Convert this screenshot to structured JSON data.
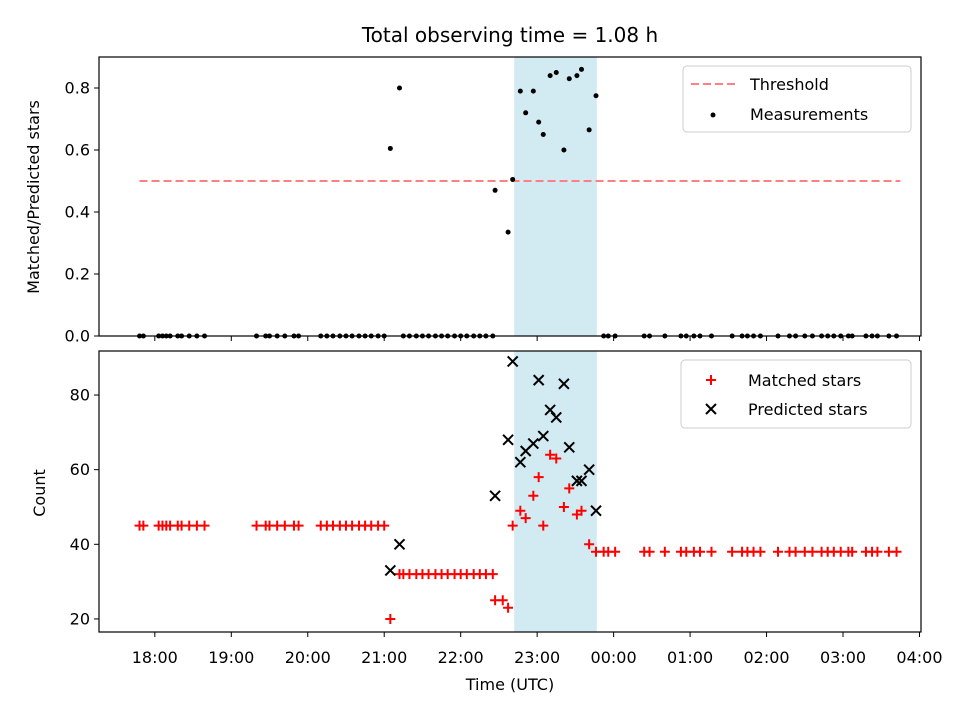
{
  "chart_data": {
    "title": "Total observing time = 1.08 h",
    "xlabel": "Time (UTC)",
    "x_tick_labels": [
      "18:00",
      "19:00",
      "20:00",
      "21:00",
      "22:00",
      "23:00",
      "00:00",
      "01:00",
      "02:00",
      "03:00",
      "04:00"
    ],
    "x_tick_hours": [
      18,
      19,
      20,
      21,
      22,
      23,
      24,
      25,
      26,
      27,
      28
    ],
    "xlim_hours": [
      17.27,
      28.02
    ],
    "highlight_span_hours": [
      22.7,
      23.78
    ],
    "colors": {
      "highlight": "#add8e6",
      "threshold": "#ff8080",
      "measurements": "#000000",
      "matched": "#ff0000",
      "predicted": "#000000"
    },
    "panels": [
      {
        "type": "scatter",
        "ylabel": "Matched/Predicted stars",
        "ylim": [
          0,
          0.9
        ],
        "y_ticks": [
          0.0,
          0.2,
          0.4,
          0.6,
          0.8
        ],
        "y_tick_labels": [
          "0.0",
          "0.2",
          "0.4",
          "0.6",
          "0.8"
        ],
        "legend_position": "upper right",
        "legend": [
          "Threshold",
          "Measurements"
        ],
        "threshold": {
          "y": 0.5,
          "x_range": [
            17.8,
            27.75
          ]
        },
        "series": [
          {
            "name": "Measurements",
            "points": [
              [
                17.8,
                0
              ],
              [
                17.85,
                0
              ],
              [
                18.05,
                0
              ],
              [
                18.1,
                0
              ],
              [
                18.15,
                0
              ],
              [
                18.2,
                0
              ],
              [
                18.3,
                0
              ],
              [
                18.35,
                0
              ],
              [
                18.45,
                0
              ],
              [
                18.55,
                0
              ],
              [
                18.65,
                0
              ],
              [
                19.33,
                0
              ],
              [
                19.45,
                0
              ],
              [
                19.5,
                0
              ],
              [
                19.6,
                0
              ],
              [
                19.7,
                0
              ],
              [
                19.82,
                0
              ],
              [
                19.88,
                0
              ],
              [
                20.17,
                0
              ],
              [
                20.25,
                0
              ],
              [
                20.33,
                0
              ],
              [
                20.42,
                0
              ],
              [
                20.5,
                0
              ],
              [
                20.58,
                0
              ],
              [
                20.67,
                0
              ],
              [
                20.75,
                0
              ],
              [
                20.83,
                0
              ],
              [
                20.92,
                0
              ],
              [
                21.0,
                0
              ],
              [
                21.08,
                0.605
              ],
              [
                21.2,
                0.8
              ],
              [
                21.25,
                0
              ],
              [
                21.33,
                0
              ],
              [
                21.42,
                0
              ],
              [
                21.5,
                0
              ],
              [
                21.58,
                0
              ],
              [
                21.67,
                0
              ],
              [
                21.75,
                0
              ],
              [
                21.83,
                0
              ],
              [
                21.92,
                0
              ],
              [
                22.0,
                0
              ],
              [
                22.08,
                0
              ],
              [
                22.17,
                0
              ],
              [
                22.25,
                0
              ],
              [
                22.33,
                0
              ],
              [
                22.42,
                0
              ],
              [
                22.45,
                0.47
              ],
              [
                22.62,
                0.335
              ],
              [
                22.68,
                0.505
              ],
              [
                22.78,
                0.79
              ],
              [
                22.85,
                0.72
              ],
              [
                22.95,
                0.79
              ],
              [
                23.02,
                0.69
              ],
              [
                23.08,
                0.65
              ],
              [
                23.17,
                0.84
              ],
              [
                23.25,
                0.85
              ],
              [
                23.35,
                0.6
              ],
              [
                23.42,
                0.83
              ],
              [
                23.52,
                0.84
              ],
              [
                23.58,
                0.86
              ],
              [
                23.68,
                0.665
              ],
              [
                23.77,
                0.775
              ],
              [
                23.87,
                0
              ],
              [
                23.93,
                0
              ],
              [
                24.02,
                0
              ],
              [
                24.4,
                0
              ],
              [
                24.47,
                0
              ],
              [
                24.67,
                0
              ],
              [
                24.88,
                0
              ],
              [
                24.95,
                0
              ],
              [
                25.05,
                0
              ],
              [
                25.13,
                0
              ],
              [
                25.28,
                0
              ],
              [
                25.55,
                0
              ],
              [
                25.68,
                0
              ],
              [
                25.75,
                0
              ],
              [
                25.83,
                0
              ],
              [
                25.92,
                0
              ],
              [
                26.15,
                0
              ],
              [
                26.3,
                0
              ],
              [
                26.38,
                0
              ],
              [
                26.5,
                0
              ],
              [
                26.6,
                0
              ],
              [
                26.72,
                0
              ],
              [
                26.8,
                0
              ],
              [
                26.88,
                0
              ],
              [
                26.97,
                0
              ],
              [
                27.07,
                0
              ],
              [
                27.12,
                0
              ],
              [
                27.3,
                0
              ],
              [
                27.38,
                0
              ],
              [
                27.45,
                0
              ],
              [
                27.6,
                0
              ],
              [
                27.7,
                0
              ]
            ]
          }
        ]
      },
      {
        "type": "scatter",
        "ylabel": "Count",
        "ylim": [
          16.5,
          91.8
        ],
        "y_ticks": [
          20,
          40,
          60,
          80
        ],
        "y_tick_labels": [
          "20",
          "40",
          "60",
          "80"
        ],
        "legend_position": "upper right",
        "legend": [
          "Matched stars",
          "Predicted stars"
        ],
        "series": [
          {
            "name": "Matched stars",
            "marker": "plus",
            "points": [
              [
                17.8,
                45
              ],
              [
                17.85,
                45
              ],
              [
                18.05,
                45
              ],
              [
                18.1,
                45
              ],
              [
                18.15,
                45
              ],
              [
                18.2,
                45
              ],
              [
                18.3,
                45
              ],
              [
                18.35,
                45
              ],
              [
                18.45,
                45
              ],
              [
                18.55,
                45
              ],
              [
                18.65,
                45
              ],
              [
                19.33,
                45
              ],
              [
                19.45,
                45
              ],
              [
                19.5,
                45
              ],
              [
                19.6,
                45
              ],
              [
                19.7,
                45
              ],
              [
                19.82,
                45
              ],
              [
                19.88,
                45
              ],
              [
                20.17,
                45
              ],
              [
                20.25,
                45
              ],
              [
                20.33,
                45
              ],
              [
                20.42,
                45
              ],
              [
                20.5,
                45
              ],
              [
                20.58,
                45
              ],
              [
                20.67,
                45
              ],
              [
                20.75,
                45
              ],
              [
                20.83,
                45
              ],
              [
                20.92,
                45
              ],
              [
                21.0,
                45
              ],
              [
                21.08,
                20
              ],
              [
                21.2,
                32
              ],
              [
                21.25,
                32
              ],
              [
                21.33,
                32
              ],
              [
                21.42,
                32
              ],
              [
                21.5,
                32
              ],
              [
                21.58,
                32
              ],
              [
                21.67,
                32
              ],
              [
                21.75,
                32
              ],
              [
                21.83,
                32
              ],
              [
                21.92,
                32
              ],
              [
                22.0,
                32
              ],
              [
                22.08,
                32
              ],
              [
                22.17,
                32
              ],
              [
                22.25,
                32
              ],
              [
                22.33,
                32
              ],
              [
                22.42,
                32
              ],
              [
                22.45,
                25
              ],
              [
                22.55,
                25
              ],
              [
                22.62,
                23
              ],
              [
                22.68,
                45
              ],
              [
                22.78,
                49
              ],
              [
                22.85,
                47
              ],
              [
                22.95,
                53
              ],
              [
                23.02,
                58
              ],
              [
                23.08,
                45
              ],
              [
                23.17,
                64
              ],
              [
                23.25,
                63
              ],
              [
                23.35,
                50
              ],
              [
                23.42,
                55
              ],
              [
                23.52,
                48
              ],
              [
                23.58,
                49
              ],
              [
                23.68,
                40
              ],
              [
                23.77,
                38
              ],
              [
                23.87,
                38
              ],
              [
                23.93,
                38
              ],
              [
                24.02,
                38
              ],
              [
                24.4,
                38
              ],
              [
                24.47,
                38
              ],
              [
                24.67,
                38
              ],
              [
                24.88,
                38
              ],
              [
                24.95,
                38
              ],
              [
                25.05,
                38
              ],
              [
                25.13,
                38
              ],
              [
                25.28,
                38
              ],
              [
                25.55,
                38
              ],
              [
                25.68,
                38
              ],
              [
                25.75,
                38
              ],
              [
                25.83,
                38
              ],
              [
                25.92,
                38
              ],
              [
                26.15,
                38
              ],
              [
                26.3,
                38
              ],
              [
                26.38,
                38
              ],
              [
                26.5,
                38
              ],
              [
                26.6,
                38
              ],
              [
                26.72,
                38
              ],
              [
                26.8,
                38
              ],
              [
                26.88,
                38
              ],
              [
                26.97,
                38
              ],
              [
                27.07,
                38
              ],
              [
                27.12,
                38
              ],
              [
                27.3,
                38
              ],
              [
                27.38,
                38
              ],
              [
                27.45,
                38
              ],
              [
                27.6,
                38
              ],
              [
                27.7,
                38
              ]
            ]
          },
          {
            "name": "Predicted stars",
            "marker": "x",
            "points": [
              [
                21.08,
                33
              ],
              [
                21.2,
                40
              ],
              [
                22.45,
                53
              ],
              [
                22.62,
                68
              ],
              [
                22.68,
                89
              ],
              [
                22.78,
                62
              ],
              [
                22.85,
                65
              ],
              [
                22.95,
                67
              ],
              [
                23.02,
                84
              ],
              [
                23.08,
                69
              ],
              [
                23.17,
                76
              ],
              [
                23.25,
                74
              ],
              [
                23.35,
                83
              ],
              [
                23.42,
                66
              ],
              [
                23.52,
                57
              ],
              [
                23.58,
                57
              ],
              [
                23.68,
                60
              ],
              [
                23.77,
                49
              ]
            ]
          }
        ]
      }
    ]
  }
}
